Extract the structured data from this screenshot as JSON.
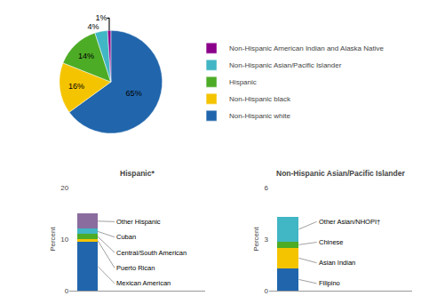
{
  "chart_data": [
    {
      "type": "pie",
      "categories": [
        "Non-Hispanic white",
        "Non-Hispanic black",
        "Hispanic",
        "Non-Hispanic Asian/Pacific Islander",
        "Non-Hispanic American Indian and Alaska Native"
      ],
      "values": [
        65,
        16,
        14,
        4,
        1
      ],
      "value_labels": [
        "65%",
        "16%",
        "14%",
        "4%",
        "1%"
      ],
      "colors": [
        "#2166ac",
        "#f5c400",
        "#4dac26",
        "#41b6c4",
        "#8b008b"
      ],
      "data_labels": true,
      "legend": "right"
    },
    {
      "type": "bar",
      "title": "Hispanic*",
      "ylabel": "Percent",
      "categories": [
        null
      ],
      "series": [
        {
          "name": "Mexican American",
          "color": "#2166ac",
          "values": [
            9.5
          ]
        },
        {
          "name": "Puerto Rican",
          "color": "#f5c400",
          "values": [
            0.5
          ]
        },
        {
          "name": "Central/South American",
          "color": "#4dac26",
          "values": [
            1.0
          ]
        },
        {
          "name": "Cuban",
          "color": "#41b6c4",
          "values": [
            1.0
          ]
        },
        {
          "name": "Other Hispanic",
          "color": "#8b6c9e",
          "values": [
            3.0
          ]
        }
      ],
      "stacked": true,
      "ylim": [
        0,
        20
      ],
      "yticks": [
        0,
        10,
        20
      ],
      "grid": false,
      "tick_labels": "y"
    },
    {
      "type": "bar",
      "title": "Non-Hispanic Asian/Pacific Islander",
      "ylabel": "Percent",
      "categories": [
        null
      ],
      "series": [
        {
          "name": "Filipino",
          "color": "#2166ac",
          "values": [
            1.3
          ]
        },
        {
          "name": "Asian Indian",
          "color": "#f5c400",
          "values": [
            1.2
          ]
        },
        {
          "name": "Chinese",
          "color": "#4dac26",
          "values": [
            0.35
          ]
        },
        {
          "name": "Other Asian/NHOPI†",
          "color": "#41b6c4",
          "values": [
            1.45
          ]
        }
      ],
      "stacked": true,
      "ylim": [
        0,
        6
      ],
      "yticks": [
        0,
        3,
        6
      ],
      "grid": false,
      "tick_labels": "y"
    }
  ]
}
